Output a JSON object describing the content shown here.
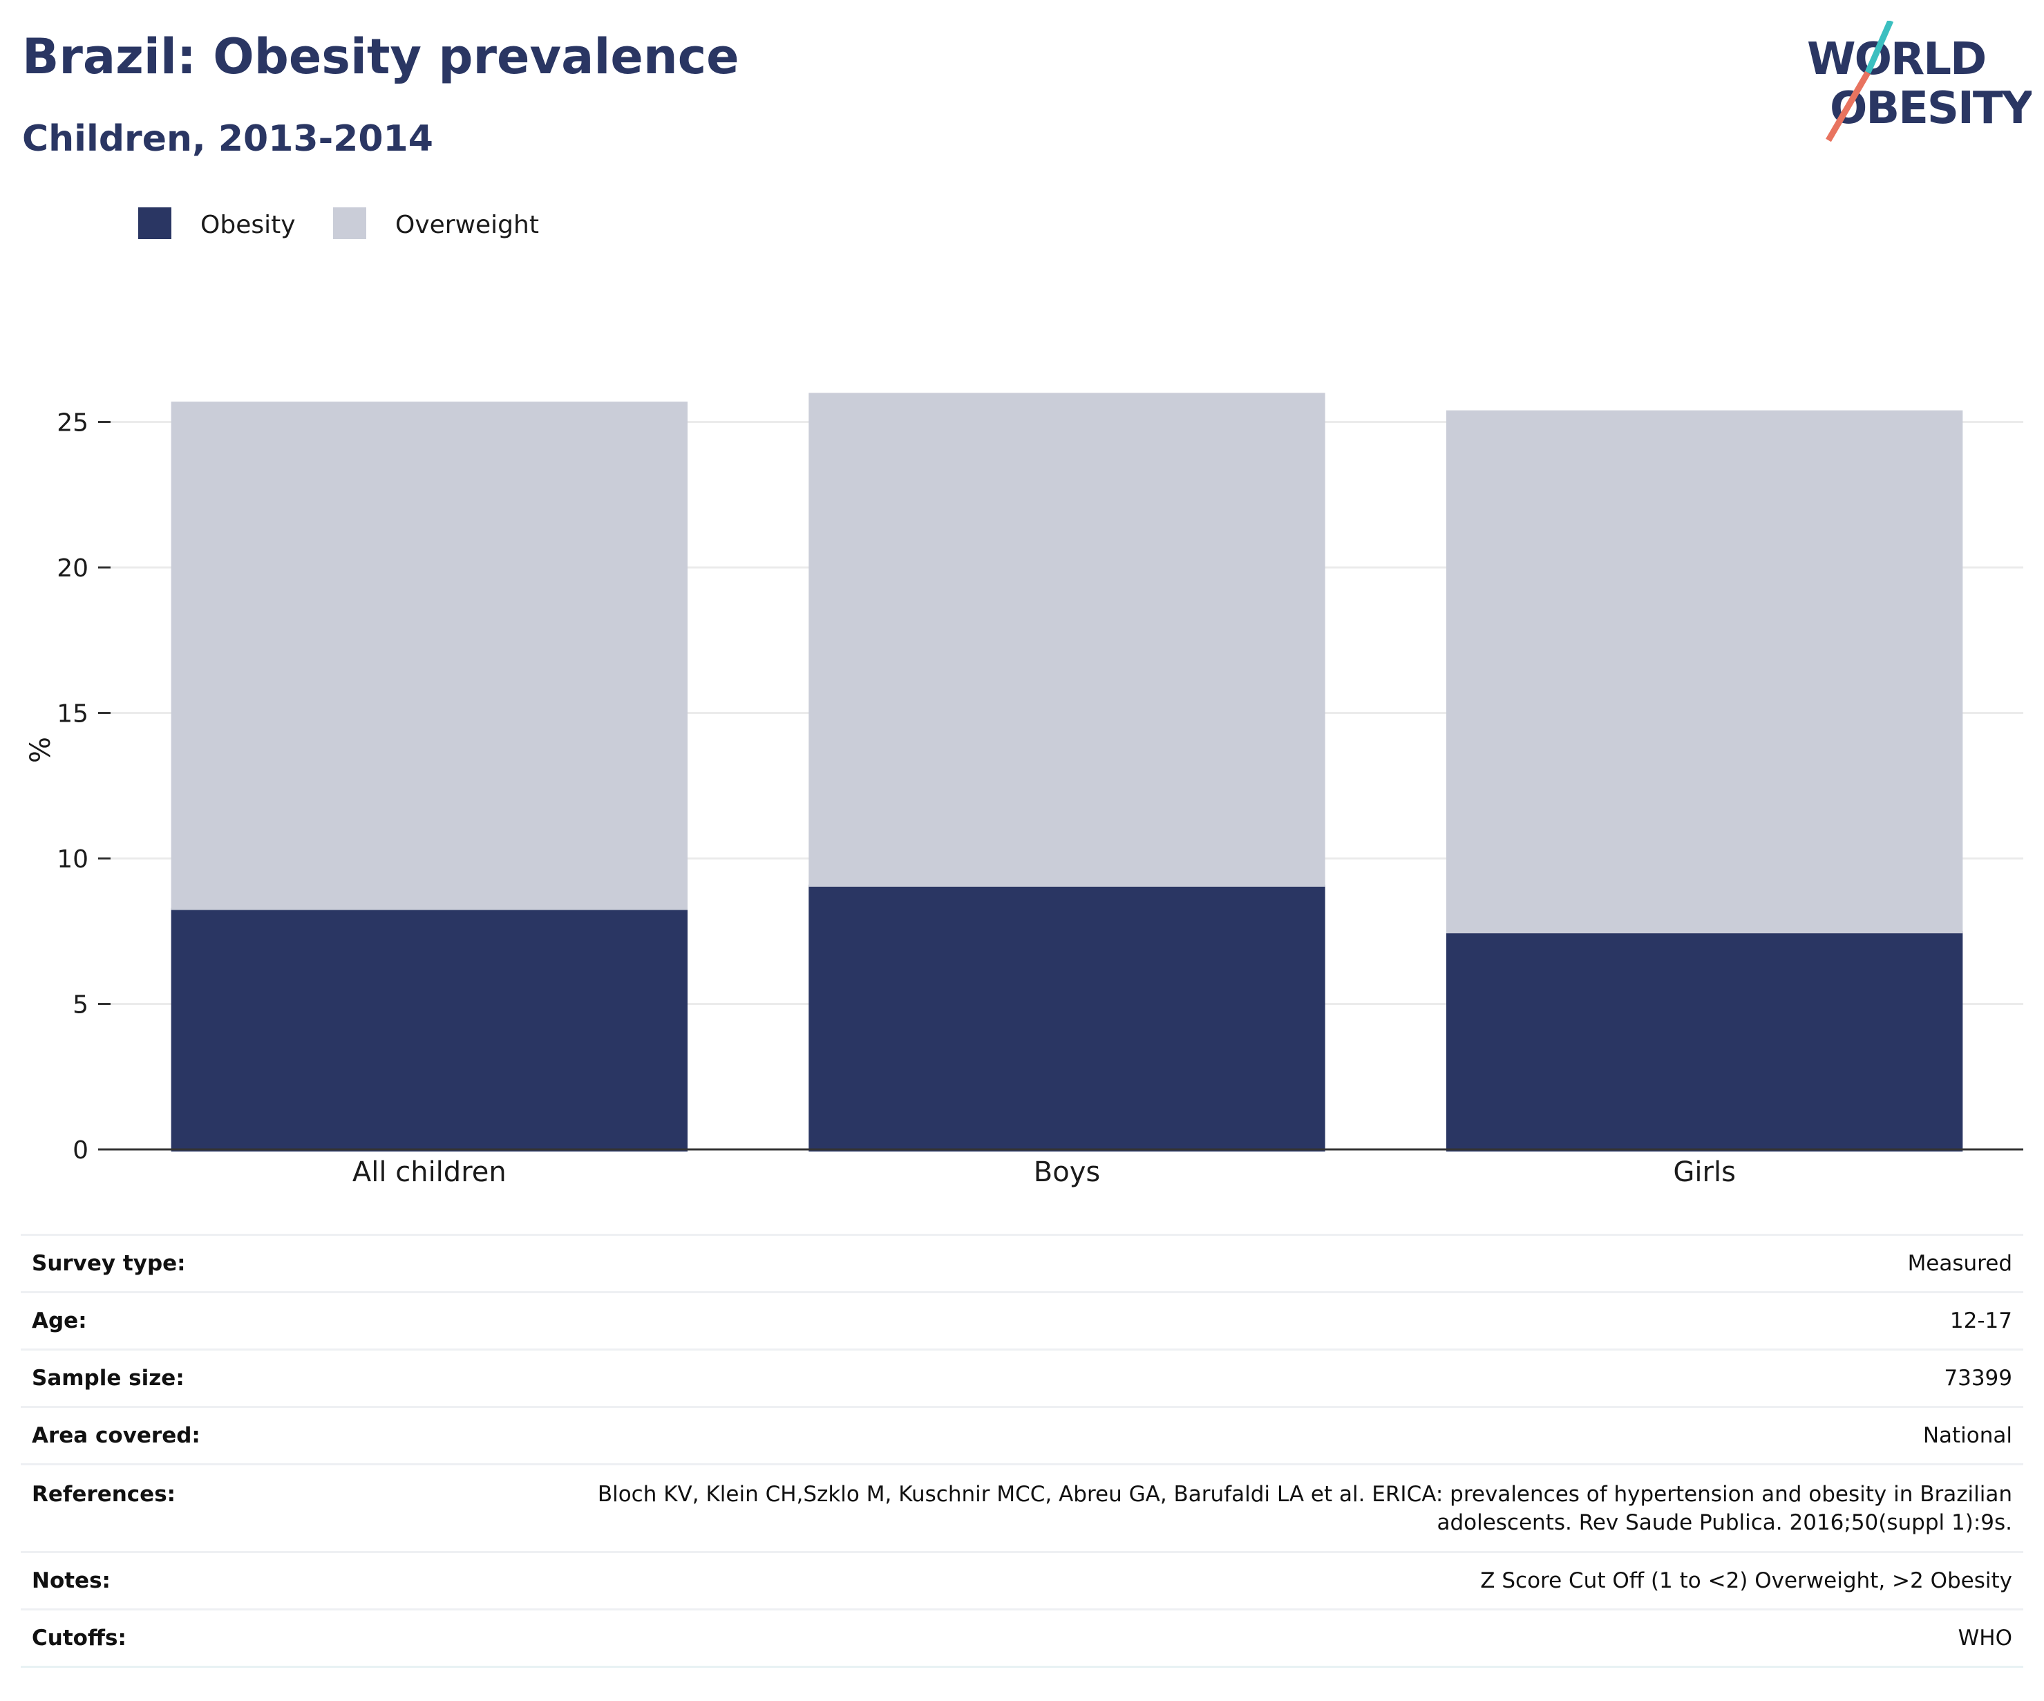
{
  "header": {
    "title": "Brazil: Obesity prevalence",
    "subtitle": "Children, 2013-2014"
  },
  "logo": {
    "line1": "WORLD",
    "line2": "OBESITY",
    "colors": {
      "text": "#2a3663",
      "slash_top": "#3bbfc0",
      "slash_bottom": "#e8735f"
    }
  },
  "chart_data": {
    "type": "bar",
    "stacked": true,
    "categories": [
      "All children",
      "Boys",
      "Girls"
    ],
    "series": [
      {
        "name": "Obesity",
        "values": [
          8.3,
          9.1,
          7.5
        ],
        "color": "#2a3663"
      },
      {
        "name": "Overweight",
        "values": [
          17.4,
          16.9,
          17.9
        ],
        "color": "#cacdd8"
      }
    ],
    "ylabel": "%",
    "ylim": [
      0,
      26.2
    ],
    "yticks": [
      0,
      5,
      10,
      15,
      20,
      25
    ],
    "grid": true,
    "legend": "top-left"
  },
  "details": {
    "rows": [
      {
        "label": "Survey type:",
        "value": "Measured"
      },
      {
        "label": "Age:",
        "value": "12-17"
      },
      {
        "label": "Sample size:",
        "value": "73399"
      },
      {
        "label": "Area covered:",
        "value": "National"
      },
      {
        "label": "References:",
        "value_lines": [
          "Bloch KV, Klein CH,Szklo M, Kuschnir MCC, Abreu GA, Barufaldi LA et al. ERICA: prevalences of hypertension and obesity in Brazilian",
          "adolescents. Rev Saude Publica. 2016;50(suppl 1):9s."
        ]
      },
      {
        "label": "Notes:",
        "value": "Z Score Cut Off (1 to <2) Overweight, >2 Obesity"
      },
      {
        "label": "Cutoffs:",
        "value": "WHO"
      }
    ]
  }
}
